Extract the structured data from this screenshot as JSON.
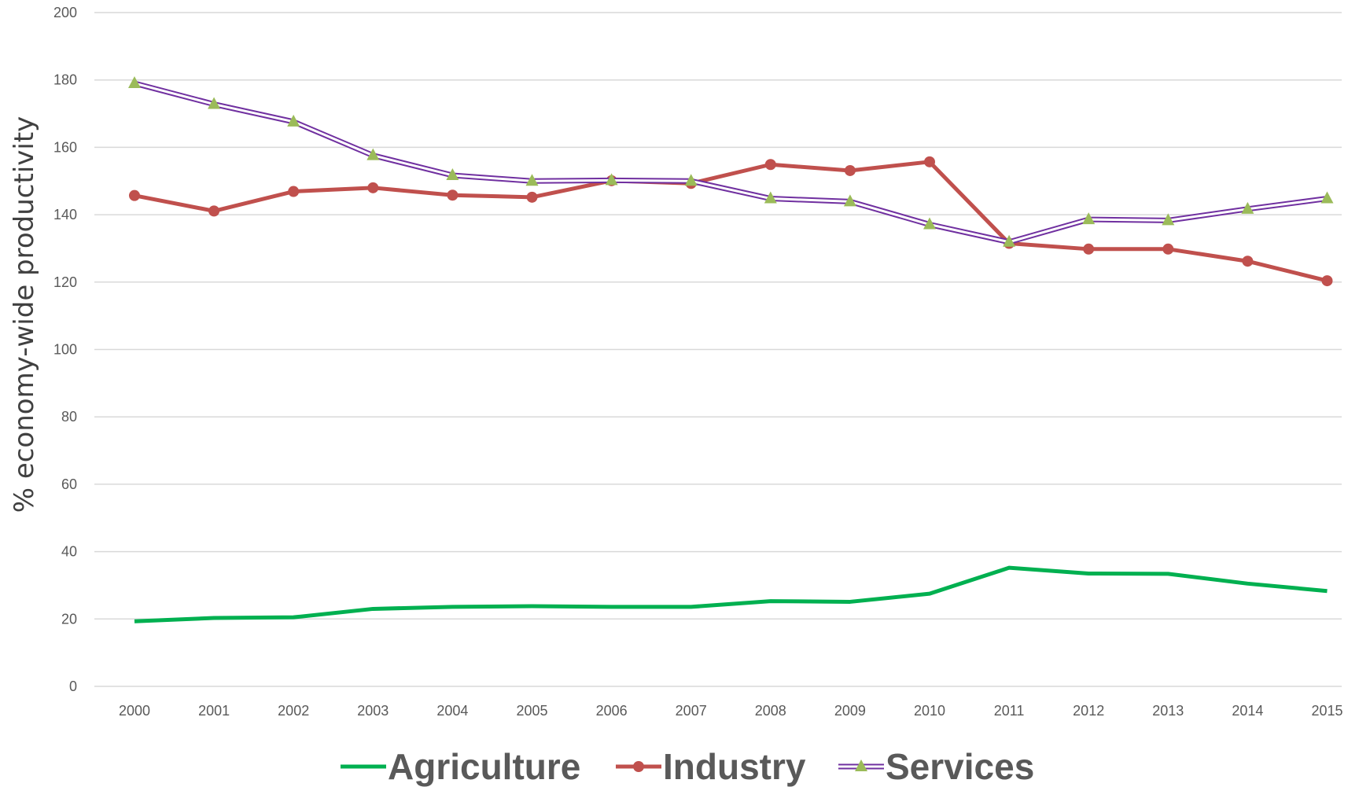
{
  "chart_data": {
    "type": "line",
    "title": "",
    "ylabel": "% economy-wide productivity",
    "xlabel": "",
    "ylim": [
      0,
      200
    ],
    "yticks": [
      0,
      20,
      40,
      60,
      80,
      100,
      120,
      140,
      160,
      180,
      200
    ],
    "grid": true,
    "legend": "bottom",
    "x": [
      "2000",
      "2001",
      "2002",
      "2003",
      "2004",
      "2005",
      "2006",
      "2007",
      "2008",
      "2009",
      "2010",
      "2011",
      "2012",
      "2013",
      "2014",
      "2015"
    ],
    "series": [
      {
        "name": "Agriculture",
        "color": "#00b050",
        "style": "line",
        "values": [
          19.3,
          20.3,
          20.5,
          23.0,
          23.6,
          23.8,
          23.6,
          23.6,
          25.3,
          25.1,
          27.5,
          35.2,
          33.5,
          33.4,
          30.5,
          28.3
        ]
      },
      {
        "name": "Industry",
        "color": "#c0504d",
        "style": "line-circle",
        "values": [
          145.7,
          141.1,
          146.9,
          148.0,
          145.8,
          145.2,
          150.1,
          149.3,
          154.9,
          153.1,
          155.7,
          131.5,
          129.8,
          129.8,
          126.2,
          120.4
        ]
      },
      {
        "name": "Services",
        "color": "#7030a0",
        "marker_color": "#9bbb59",
        "style": "double-line-triangle",
        "values": [
          179.0,
          172.8,
          167.6,
          157.6,
          151.7,
          150.0,
          150.2,
          150.0,
          144.8,
          143.9,
          137.1,
          131.9,
          138.6,
          138.3,
          141.7,
          144.8
        ]
      }
    ]
  }
}
